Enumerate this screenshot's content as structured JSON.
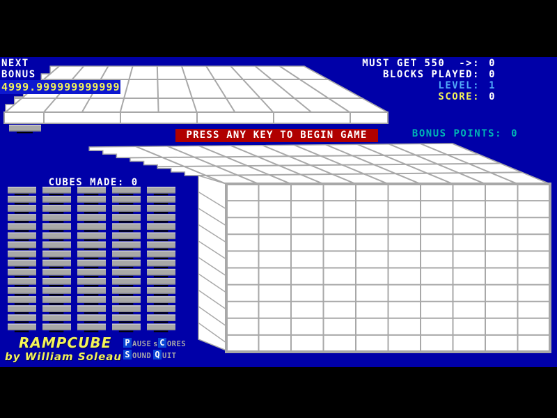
{
  "colors": {
    "background": "#0000a8",
    "black_bar": "#000000",
    "white": "#ffffff",
    "gray": "#a8a8a8",
    "yellow": "#f4f458",
    "banner_red": "#b00000",
    "teal": "#00b4b4",
    "light_blue": "#52aaf8",
    "highlight_box_blue": "#0a46d4",
    "bonus_box_blue": "#0d18cf",
    "surface_white": "#ffffff",
    "grid_line_gray": "#a8a8a8"
  },
  "hud_left": {
    "next_label": "NEXT",
    "bonus_label": "BONUS",
    "bonus_value": "4999.999999999999"
  },
  "hud_right": {
    "rows": [
      {
        "key": "must-get",
        "label": "MUST GET 550  ->:",
        "value": "0",
        "label_color": "white",
        "value_color": "white"
      },
      {
        "key": "blocks-played",
        "label": "BLOCKS PLAYED:",
        "value": "0",
        "label_color": "white",
        "value_color": "white"
      },
      {
        "key": "level",
        "label": "LEVEL:",
        "value": "1",
        "label_color": "light_blue",
        "value_color": "light_blue"
      },
      {
        "key": "score",
        "label": "SCORE:",
        "value": "0",
        "label_color": "yellow",
        "value_color": "white"
      }
    ],
    "bonus_points_label": "BONUS POINTS:",
    "bonus_points_value": "0"
  },
  "banner": {
    "text": "PRESS ANY KEY TO BEGIN GAME"
  },
  "cubes": {
    "label": "CUBES MADE:",
    "value": "0"
  },
  "title": {
    "name": "RAMPCUBE",
    "byline": "by William Soleau"
  },
  "menu": {
    "items": [
      {
        "key": "pause",
        "segments": [
          {
            "t": "P",
            "boxed": true
          },
          {
            "t": "AUSE"
          }
        ]
      },
      {
        "key": "scores",
        "segments": [
          {
            "t": "s"
          },
          {
            "t": "C",
            "boxed": true
          },
          {
            "t": "ORES"
          }
        ]
      },
      {
        "key": "sound",
        "segments": [
          {
            "t": "S",
            "boxed": true
          },
          {
            "t": "OUND"
          }
        ]
      },
      {
        "key": "quit",
        "segments": [
          {
            "t": "Q",
            "boxed": true
          },
          {
            "t": "UIT"
          }
        ]
      }
    ]
  },
  "scene": {
    "board_front_cols": 10,
    "board_front_rows": 10,
    "ramp_cols": 10,
    "ramp_rows": 3,
    "stack_columns": 5,
    "stacks_per_column": 16,
    "next_preview_blocks": 1
  }
}
